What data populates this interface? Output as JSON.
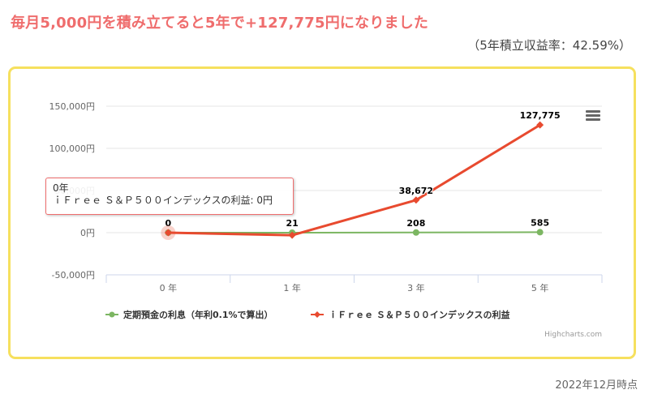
{
  "header": {
    "headline": "毎月5,000円を積み立てると5年で+127,775円になりました",
    "subtitle": "（5年積立収益率：42.59%）"
  },
  "footer": {
    "date": "2022年12月時点"
  },
  "chart_data": {
    "type": "line",
    "categories": [
      "0 年",
      "1 年",
      "3 年",
      "5 年"
    ],
    "ylim": [
      -50000,
      150000
    ],
    "y_ticks": [
      -50000,
      0,
      50000,
      100000,
      150000
    ],
    "y_tick_labels": [
      "-50,000円",
      "0円",
      "50,000円",
      "100,000円",
      "150,000円"
    ],
    "grid": true,
    "legend_position": "bottom",
    "series": [
      {
        "name": "定期預金の利息（年利0.1%で算出）",
        "color": "#7cb662",
        "marker": "circle",
        "values": [
          0,
          21,
          208,
          585
        ],
        "labels": [
          "0",
          "21",
          "208",
          "585"
        ]
      },
      {
        "name": "ｉＦｒｅｅ Ｓ＆Ｐ５００インデックスの利益",
        "color": "#e84a2f",
        "marker": "diamond",
        "values": [
          0,
          -3000,
          38672,
          127775
        ],
        "labels": [
          "",
          "",
          "38,672",
          "127,775"
        ]
      }
    ],
    "credit": "Highcharts.com"
  },
  "tooltip": {
    "title": "0年",
    "text": "ｉＦｒｅｅ Ｓ＆Ｐ５００インデックスの利益: 0円"
  }
}
